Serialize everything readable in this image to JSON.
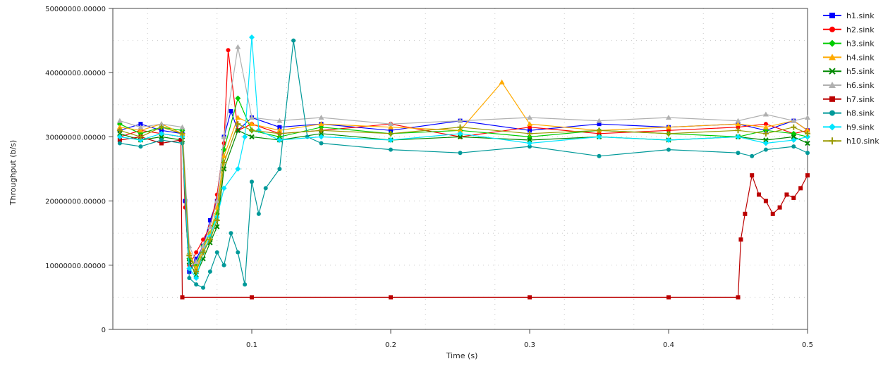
{
  "chart_data": {
    "type": "line",
    "title": "",
    "xlabel": "Time (s)",
    "ylabel": "Throughput (b/s)",
    "xlim": [
      0.0,
      0.5
    ],
    "ylim": [
      0,
      50000000
    ],
    "x_ticks": [
      0.1,
      0.2,
      0.3,
      0.4,
      0.5
    ],
    "x_tick_labels": [
      "0.1",
      "0.2",
      "0.3",
      "0.4",
      "0.5"
    ],
    "y_ticks": [
      0,
      10000000,
      20000000,
      30000000,
      40000000,
      50000000
    ],
    "y_tick_labels": [
      "0",
      "10000000.00000",
      "20000000.00000",
      "30000000.00000",
      "40000000.00000",
      "50000000.00000"
    ],
    "grid": true,
    "legend_position": "right",
    "series": [
      {
        "name": "h1.sink",
        "color": "#0000ff",
        "marker": "square",
        "x": [
          0.005,
          0.02,
          0.035,
          0.05,
          0.052,
          0.055,
          0.06,
          0.065,
          0.07,
          0.075,
          0.08,
          0.085,
          0.09,
          0.1,
          0.12,
          0.15,
          0.2,
          0.25,
          0.3,
          0.35,
          0.4,
          0.45,
          0.47,
          0.49,
          0.5
        ],
        "y": [
          31000000,
          32000000,
          31000000,
          30500000,
          20000000,
          9000000,
          11000000,
          13000000,
          17000000,
          20000000,
          30000000,
          34000000,
          31000000,
          33000000,
          31500000,
          32000000,
          31000000,
          32500000,
          31000000,
          32000000,
          31500000,
          32000000,
          31000000,
          32500000,
          31000000
        ]
      },
      {
        "name": "h2.sink",
        "color": "#ff0000",
        "marker": "circle",
        "x": [
          0.005,
          0.02,
          0.035,
          0.05,
          0.052,
          0.055,
          0.06,
          0.065,
          0.07,
          0.075,
          0.08,
          0.083,
          0.09,
          0.1,
          0.12,
          0.15,
          0.2,
          0.25,
          0.3,
          0.35,
          0.4,
          0.45,
          0.47,
          0.49,
          0.5
        ],
        "y": [
          30000000,
          31000000,
          30500000,
          30000000,
          19000000,
          10000000,
          12000000,
          14000000,
          16000000,
          21000000,
          29000000,
          43500000,
          31000000,
          32000000,
          30500000,
          31000000,
          32000000,
          30000000,
          31500000,
          30500000,
          31000000,
          31500000,
          32000000,
          30500000,
          31000000
        ]
      },
      {
        "name": "h3.sink",
        "color": "#00cc00",
        "marker": "diamond",
        "x": [
          0.005,
          0.02,
          0.035,
          0.05,
          0.055,
          0.06,
          0.065,
          0.07,
          0.075,
          0.08,
          0.09,
          0.1,
          0.12,
          0.15,
          0.2,
          0.25,
          0.3,
          0.35,
          0.4,
          0.45,
          0.47,
          0.49,
          0.5
        ],
        "y": [
          32000000,
          30500000,
          31500000,
          31000000,
          11000000,
          10000000,
          13000000,
          15000000,
          18000000,
          28000000,
          36000000,
          31000000,
          30000000,
          31500000,
          30500000,
          31000000,
          30000000,
          31000000,
          30500000,
          30000000,
          31000000,
          30500000,
          30000000
        ]
      },
      {
        "name": "h4.sink",
        "color": "#ffaa00",
        "marker": "triangle",
        "x": [
          0.005,
          0.02,
          0.035,
          0.05,
          0.055,
          0.06,
          0.065,
          0.07,
          0.075,
          0.08,
          0.09,
          0.1,
          0.12,
          0.15,
          0.2,
          0.25,
          0.28,
          0.3,
          0.35,
          0.4,
          0.45,
          0.47,
          0.49,
          0.5
        ],
        "y": [
          31500000,
          31000000,
          32000000,
          30500000,
          12000000,
          9500000,
          12500000,
          15000000,
          19000000,
          27000000,
          33000000,
          32000000,
          31000000,
          32000000,
          31500000,
          31000000,
          38500000,
          32000000,
          31000000,
          31500000,
          32000000,
          31500000,
          32500000,
          31000000
        ]
      },
      {
        "name": "h5.sink",
        "color": "#008800",
        "marker": "x",
        "x": [
          0.005,
          0.02,
          0.035,
          0.05,
          0.055,
          0.06,
          0.065,
          0.07,
          0.075,
          0.08,
          0.09,
          0.1,
          0.12,
          0.15,
          0.2,
          0.25,
          0.3,
          0.35,
          0.4,
          0.45,
          0.47,
          0.49,
          0.5
        ],
        "y": [
          30500000,
          29500000,
          30000000,
          29500000,
          10500000,
          8500000,
          11000000,
          13500000,
          16000000,
          25000000,
          31000000,
          30000000,
          29500000,
          30500000,
          29500000,
          30000000,
          29500000,
          30000000,
          29500000,
          30000000,
          29500000,
          30000000,
          29000000
        ]
      },
      {
        "name": "h6.sink",
        "color": "#b0b0b0",
        "marker": "triangle",
        "x": [
          0.005,
          0.02,
          0.035,
          0.05,
          0.055,
          0.06,
          0.065,
          0.07,
          0.075,
          0.08,
          0.09,
          0.1,
          0.12,
          0.15,
          0.2,
          0.25,
          0.3,
          0.35,
          0.4,
          0.45,
          0.47,
          0.49,
          0.5
        ],
        "y": [
          32500000,
          31500000,
          32000000,
          31500000,
          13000000,
          10500000,
          13000000,
          16000000,
          20000000,
          30000000,
          44000000,
          33000000,
          32500000,
          33000000,
          32000000,
          32500000,
          33000000,
          32500000,
          33000000,
          32500000,
          33500000,
          32500000,
          33000000
        ]
      },
      {
        "name": "h7.sink",
        "color": "#bb0000",
        "marker": "square",
        "x": [
          0.005,
          0.02,
          0.035,
          0.049,
          0.05,
          0.1,
          0.2,
          0.3,
          0.4,
          0.45,
          0.452,
          0.455,
          0.46,
          0.465,
          0.47,
          0.475,
          0.48,
          0.485,
          0.49,
          0.495,
          0.5
        ],
        "y": [
          29500000,
          30000000,
          29000000,
          29500000,
          5000000,
          5000000,
          5000000,
          5000000,
          5000000,
          5000000,
          14000000,
          18000000,
          24000000,
          21000000,
          20000000,
          18000000,
          19000000,
          21000000,
          20500000,
          22000000,
          24000000
        ]
      },
      {
        "name": "h8.sink",
        "color": "#009999",
        "marker": "circle",
        "x": [
          0.005,
          0.02,
          0.035,
          0.05,
          0.055,
          0.06,
          0.065,
          0.07,
          0.075,
          0.08,
          0.085,
          0.09,
          0.095,
          0.1,
          0.105,
          0.11,
          0.12,
          0.13,
          0.14,
          0.15,
          0.2,
          0.25,
          0.3,
          0.35,
          0.4,
          0.45,
          0.46,
          0.47,
          0.49,
          0.5
        ],
        "y": [
          29000000,
          28500000,
          29500000,
          29000000,
          8000000,
          7000000,
          6500000,
          9000000,
          12000000,
          10000000,
          15000000,
          12000000,
          7000000,
          23000000,
          18000000,
          22000000,
          25000000,
          45000000,
          30000000,
          29000000,
          28000000,
          27500000,
          28500000,
          27000000,
          28000000,
          27500000,
          27000000,
          28000000,
          28500000,
          27500000
        ]
      },
      {
        "name": "h9.sink",
        "color": "#00e5ff",
        "marker": "diamond",
        "x": [
          0.005,
          0.02,
          0.035,
          0.05,
          0.055,
          0.06,
          0.065,
          0.07,
          0.075,
          0.08,
          0.09,
          0.095,
          0.1,
          0.105,
          0.12,
          0.15,
          0.2,
          0.25,
          0.3,
          0.35,
          0.4,
          0.45,
          0.47,
          0.49,
          0.5
        ],
        "y": [
          30000000,
          29500000,
          30500000,
          30000000,
          9500000,
          8000000,
          12000000,
          14500000,
          17500000,
          22000000,
          25000000,
          30000000,
          45500000,
          31000000,
          29500000,
          30000000,
          29500000,
          30500000,
          29000000,
          30000000,
          29500000,
          30000000,
          29000000,
          29500000,
          30000000
        ]
      },
      {
        "name": "h10.sink",
        "color": "#999900",
        "marker": "plus",
        "x": [
          0.005,
          0.02,
          0.035,
          0.05,
          0.055,
          0.06,
          0.065,
          0.07,
          0.075,
          0.08,
          0.09,
          0.1,
          0.12,
          0.15,
          0.2,
          0.25,
          0.3,
          0.35,
          0.4,
          0.45,
          0.47,
          0.49,
          0.5
        ],
        "y": [
          31000000,
          30000000,
          31500000,
          30500000,
          11500000,
          9000000,
          12000000,
          14000000,
          17000000,
          26000000,
          32000000,
          31000000,
          30500000,
          31000000,
          30500000,
          31500000,
          30500000,
          31000000,
          30500000,
          31000000,
          30500000,
          31500000,
          30500000
        ]
      }
    ]
  }
}
